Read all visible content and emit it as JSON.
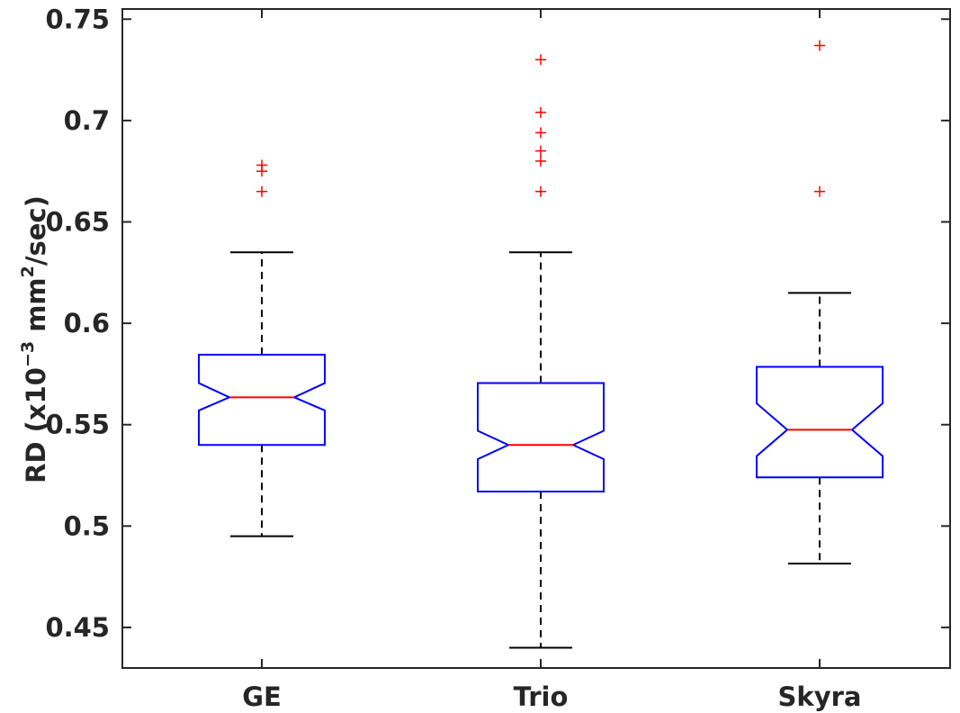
{
  "chart_data": {
    "type": "boxplot",
    "notched": true,
    "ylabel": {
      "prefix": "RD (x10",
      "exponent1": "−3",
      "middle": " mm",
      "exponent2": "2",
      "suffix": "/sec)"
    },
    "ylim": [
      0.43,
      0.755
    ],
    "yticks": [
      0.45,
      0.5,
      0.55,
      0.6,
      0.65,
      0.7,
      0.75
    ],
    "ytick_labels": [
      "0.45",
      "0.5",
      "0.55",
      "0.6",
      "0.65",
      "0.7",
      "0.75"
    ],
    "categories": [
      "GE",
      "Trio",
      "Skyra"
    ],
    "boxes": [
      {
        "name": "GE",
        "whisker_low": 0.495,
        "q1": 0.54,
        "median": 0.5635,
        "q3": 0.5845,
        "whisker_high": 0.635,
        "notch_low": 0.557,
        "notch_high": 0.5705,
        "outliers": [
          0.665,
          0.675,
          0.678
        ]
      },
      {
        "name": "Trio",
        "whisker_low": 0.44,
        "q1": 0.517,
        "median": 0.54,
        "q3": 0.5705,
        "whisker_high": 0.635,
        "notch_low": 0.533,
        "notch_high": 0.547,
        "outliers": [
          0.665,
          0.68,
          0.685,
          0.694,
          0.704,
          0.73
        ]
      },
      {
        "name": "Skyra",
        "whisker_low": 0.4815,
        "q1": 0.524,
        "median": 0.5475,
        "q3": 0.5785,
        "whisker_high": 0.615,
        "notch_low": 0.5345,
        "notch_high": 0.5605,
        "outliers": [
          0.665,
          0.737
        ]
      }
    ],
    "colors": {
      "box": "#0000ff",
      "median": "#ff0000",
      "whisker": "#000000",
      "outlier": "#ff0000",
      "axis": "#262626"
    }
  }
}
